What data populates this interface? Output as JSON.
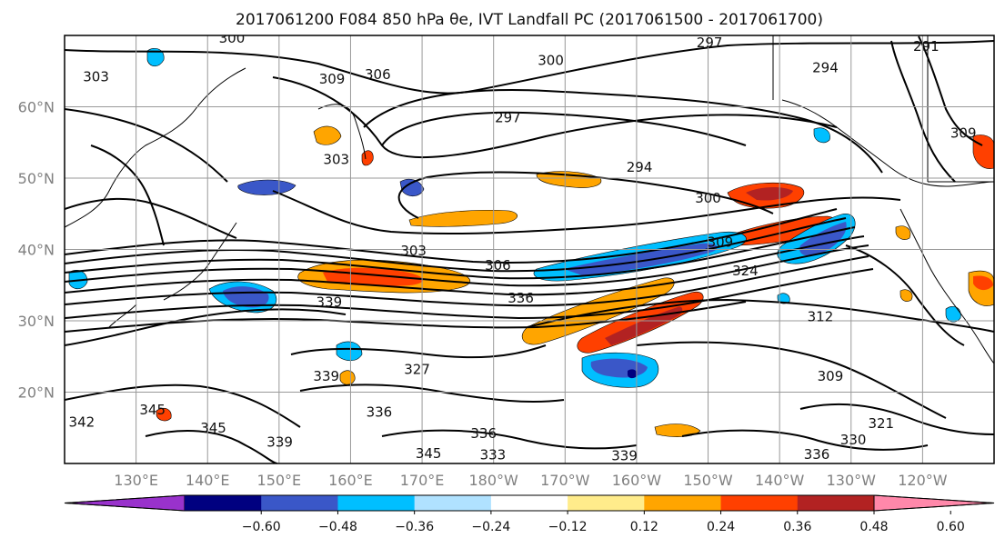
{
  "chart_data": {
    "type": "contour-map",
    "title": "2017061200 F084 850 hPa θe, IVT Landfall PC (2017061500 - 2017061700)",
    "x_ticks": [
      "130°E",
      "140°E",
      "150°E",
      "160°E",
      "170°E",
      "180°W",
      "170°W",
      "160°W",
      "150°W",
      "140°W",
      "130°W",
      "120°W"
    ],
    "x_tick_lons": [
      130,
      140,
      150,
      160,
      170,
      180,
      190,
      200,
      210,
      220,
      230,
      240
    ],
    "y_ticks": [
      "20°N",
      "30°N",
      "40°N",
      "50°N",
      "60°N"
    ],
    "y_tick_lats": [
      20,
      30,
      40,
      50,
      60
    ],
    "lon_range": [
      120,
      250
    ],
    "lat_range": [
      10,
      70
    ],
    "grid": true,
    "colorbar": {
      "extend": "both",
      "boundaries": [
        -0.6,
        -0.48,
        -0.36,
        -0.24,
        -0.12,
        0.12,
        0.24,
        0.36,
        0.48,
        0.6
      ],
      "tick_labels": [
        "−0.60",
        "−0.48",
        "−0.36",
        "−0.24",
        "−0.12",
        "0.12",
        "0.24",
        "0.36",
        "0.48",
        "0.60"
      ],
      "colors": [
        "#9932cc",
        "#000080",
        "#3a57c8",
        "#00bfff",
        "#b0e2ff",
        "#ffffff",
        "#ffec8b",
        "#ffa500",
        "#ff4000",
        "#b22222",
        "#ff88aa"
      ]
    },
    "contour_labels": [
      {
        "text": "300",
        "lon": 143.4,
        "lat": 69.6
      },
      {
        "text": "303",
        "lon": 124.4,
        "lat": 64.2
      },
      {
        "text": "309",
        "lon": 157.4,
        "lat": 63.9
      },
      {
        "text": "306",
        "lon": 163.8,
        "lat": 64.5
      },
      {
        "text": "300",
        "lon": 188.0,
        "lat": 66.5
      },
      {
        "text": "297",
        "lon": 210.2,
        "lat": 69.0
      },
      {
        "text": "291",
        "lon": 240.5,
        "lat": 68.5
      },
      {
        "text": "294",
        "lon": 226.4,
        "lat": 65.5
      },
      {
        "text": "297",
        "lon": 182.0,
        "lat": 58.5
      },
      {
        "text": "303",
        "lon": 158.0,
        "lat": 52.6
      },
      {
        "text": "294",
        "lon": 200.4,
        "lat": 51.5
      },
      {
        "text": "309",
        "lon": 245.7,
        "lat": 56.3
      },
      {
        "text": "300",
        "lon": 210.0,
        "lat": 47.2
      },
      {
        "text": "309",
        "lon": 211.7,
        "lat": 41.0
      },
      {
        "text": "303",
        "lon": 168.8,
        "lat": 39.8
      },
      {
        "text": "306",
        "lon": 180.6,
        "lat": 37.8
      },
      {
        "text": "324",
        "lon": 215.2,
        "lat": 37.0
      },
      {
        "text": "339",
        "lon": 157.0,
        "lat": 32.6
      },
      {
        "text": "336",
        "lon": 183.8,
        "lat": 33.2
      },
      {
        "text": "312",
        "lon": 225.7,
        "lat": 30.6
      },
      {
        "text": "339",
        "lon": 156.6,
        "lat": 22.2
      },
      {
        "text": "327",
        "lon": 169.3,
        "lat": 23.2
      },
      {
        "text": "309",
        "lon": 227.1,
        "lat": 22.2
      },
      {
        "text": "345",
        "lon": 132.3,
        "lat": 17.5
      },
      {
        "text": "342",
        "lon": 122.4,
        "lat": 15.8
      },
      {
        "text": "336",
        "lon": 164.0,
        "lat": 17.2
      },
      {
        "text": "345",
        "lon": 140.8,
        "lat": 15.0
      },
      {
        "text": "339",
        "lon": 150.1,
        "lat": 13.0
      },
      {
        "text": "321",
        "lon": 234.2,
        "lat": 15.6
      },
      {
        "text": "330",
        "lon": 230.3,
        "lat": 13.3
      },
      {
        "text": "336",
        "lon": 225.2,
        "lat": 11.3
      },
      {
        "text": "336",
        "lon": 178.6,
        "lat": 14.2
      },
      {
        "text": "345",
        "lon": 170.9,
        "lat": 11.4
      },
      {
        "text": "333",
        "lon": 179.9,
        "lat": 11.2
      },
      {
        "text": "339",
        "lon": 198.3,
        "lat": 11.1
      }
    ]
  }
}
